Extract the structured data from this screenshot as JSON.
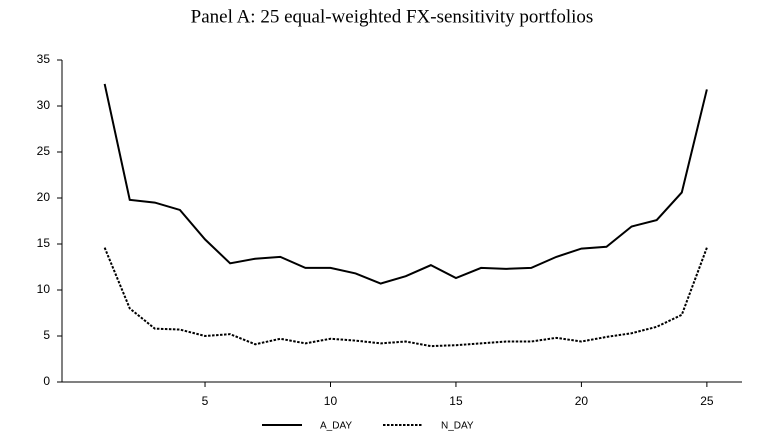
{
  "chart_data": {
    "type": "line",
    "title": "Panel A: 25 equal-weighted FX-sensitivity portfolios",
    "x": [
      1,
      2,
      3,
      4,
      5,
      6,
      7,
      8,
      9,
      10,
      11,
      12,
      13,
      14,
      15,
      16,
      17,
      18,
      19,
      20,
      21,
      22,
      23,
      24,
      25
    ],
    "series": [
      {
        "name": "A_DAY",
        "color": "#000000",
        "dash": "solid",
        "values": [
          32.4,
          19.8,
          19.5,
          18.7,
          15.5,
          12.9,
          13.4,
          13.6,
          12.4,
          12.4,
          11.8,
          10.7,
          11.5,
          12.7,
          11.3,
          12.4,
          12.3,
          12.4,
          13.6,
          14.5,
          14.7,
          16.9,
          17.6,
          20.6,
          31.8
        ]
      },
      {
        "name": "N_DAY",
        "color": "#000000",
        "dash": "dotted",
        "values": [
          14.6,
          8.0,
          5.8,
          5.7,
          5.0,
          5.2,
          4.1,
          4.7,
          4.2,
          4.7,
          4.5,
          4.2,
          4.4,
          3.9,
          4.0,
          4.2,
          4.4,
          4.4,
          4.8,
          4.4,
          4.9,
          5.3,
          6.0,
          7.3,
          14.6
        ]
      }
    ],
    "xlim": [
      -0.7,
      26.4
    ],
    "xticks": [
      5,
      10,
      15,
      20,
      25
    ],
    "ylim": [
      0,
      35
    ],
    "yticks": [
      0,
      5,
      10,
      15,
      20,
      25,
      30,
      35
    ],
    "legend": "bottom"
  }
}
